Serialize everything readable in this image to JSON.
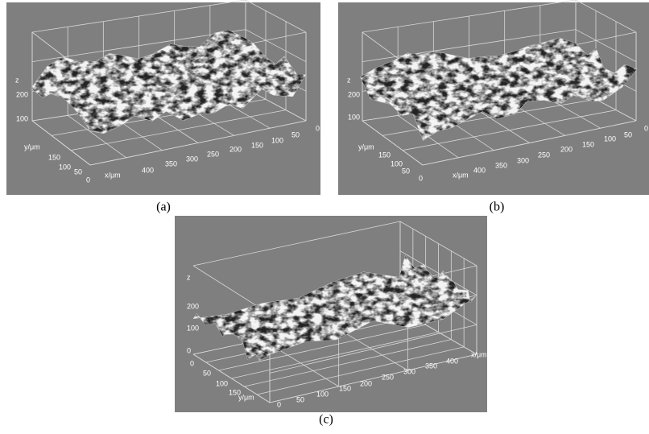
{
  "panels": [
    {
      "caption": "(a)",
      "z_label": "z",
      "z_ticks": [
        "200",
        "100"
      ],
      "y_label": "y/μm",
      "y_ticks": [
        "150",
        "100",
        "50",
        "0"
      ],
      "x_label": "x/μm",
      "x_ticks": [
        "400",
        "350",
        "300",
        "250",
        "200",
        "150",
        "100",
        "50",
        "0"
      ]
    },
    {
      "caption": "(b)",
      "z_label": "z",
      "z_ticks": [
        "200",
        "100"
      ],
      "y_label": "y/μm",
      "y_ticks": [
        "150",
        "100",
        "50",
        "0"
      ],
      "x_label": "x/μm",
      "x_ticks": [
        "400",
        "350",
        "300",
        "250",
        "200",
        "150",
        "100",
        "50",
        "0"
      ]
    },
    {
      "caption": "(c)",
      "z_label": "z",
      "z_ticks": [
        "200",
        "100",
        "0"
      ],
      "y_label": "y/μm",
      "y_ticks": [
        "0",
        "50",
        "100",
        "150"
      ],
      "x_label": "x/μm",
      "x_ticks": [
        "0",
        "50",
        "100",
        "150",
        "200",
        "250",
        "300",
        "350",
        "400"
      ]
    }
  ]
}
